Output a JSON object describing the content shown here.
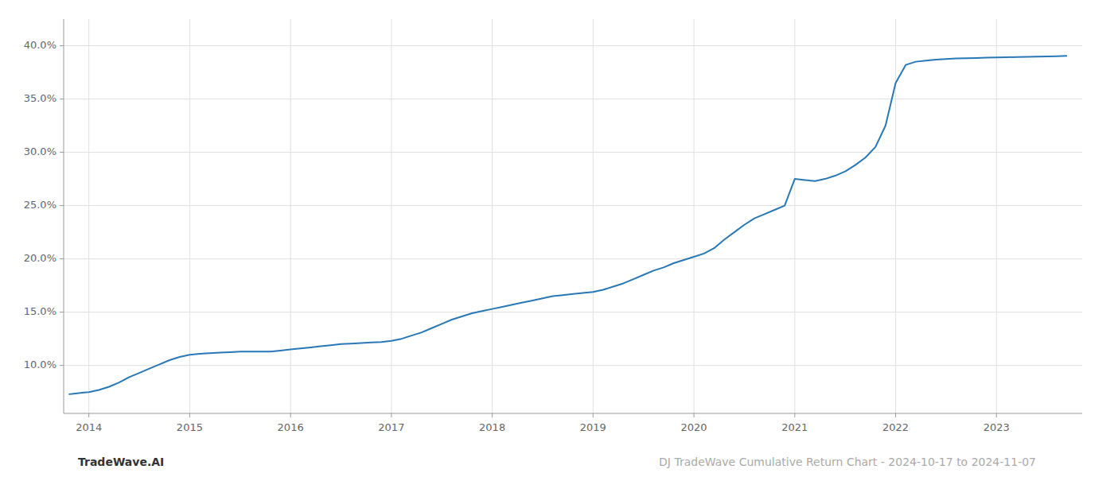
{
  "chart_data": {
    "type": "line",
    "x": [
      2013.8,
      2013.85,
      2013.9,
      2013.95,
      2014.0,
      2014.1,
      2014.2,
      2014.3,
      2014.4,
      2014.5,
      2014.6,
      2014.7,
      2014.8,
      2014.9,
      2015.0,
      2015.1,
      2015.2,
      2015.3,
      2015.4,
      2015.5,
      2015.6,
      2015.7,
      2015.8,
      2015.9,
      2016.0,
      2016.1,
      2016.2,
      2016.3,
      2016.4,
      2016.5,
      2016.6,
      2016.7,
      2016.8,
      2016.9,
      2017.0,
      2017.1,
      2017.2,
      2017.3,
      2017.4,
      2017.5,
      2017.6,
      2017.7,
      2017.8,
      2017.9,
      2018.0,
      2018.1,
      2018.2,
      2018.3,
      2018.4,
      2018.5,
      2018.6,
      2018.7,
      2018.8,
      2018.9,
      2019.0,
      2019.1,
      2019.2,
      2019.3,
      2019.4,
      2019.5,
      2019.6,
      2019.7,
      2019.8,
      2019.9,
      2020.0,
      2020.1,
      2020.2,
      2020.3,
      2020.4,
      2020.5,
      2020.6,
      2020.7,
      2020.8,
      2020.9,
      2021.0,
      2021.1,
      2021.2,
      2021.3,
      2021.4,
      2021.5,
      2021.6,
      2021.7,
      2021.8,
      2021.9,
      2022.0,
      2022.1,
      2022.2,
      2022.3,
      2022.4,
      2022.5,
      2022.6,
      2022.7,
      2022.8,
      2022.9,
      2023.0,
      2023.1,
      2023.2,
      2023.3,
      2023.4,
      2023.5,
      2023.6,
      2023.7
    ],
    "values": [
      7.3,
      7.35,
      7.4,
      7.45,
      7.5,
      7.7,
      8.0,
      8.4,
      8.9,
      9.3,
      9.7,
      10.1,
      10.5,
      10.8,
      11.0,
      11.1,
      11.15,
      11.2,
      11.25,
      11.3,
      11.3,
      11.3,
      11.3,
      11.4,
      11.5,
      11.6,
      11.7,
      11.8,
      11.9,
      12.0,
      12.05,
      12.1,
      12.15,
      12.2,
      12.3,
      12.5,
      12.8,
      13.1,
      13.5,
      13.9,
      14.3,
      14.6,
      14.9,
      15.1,
      15.3,
      15.5,
      15.7,
      15.9,
      16.1,
      16.3,
      16.5,
      16.6,
      16.7,
      16.8,
      16.9,
      17.1,
      17.4,
      17.7,
      18.1,
      18.5,
      18.9,
      19.2,
      19.6,
      19.9,
      20.2,
      20.5,
      21.0,
      21.8,
      22.5,
      23.2,
      23.8,
      24.2,
      24.6,
      25.0,
      27.5,
      27.4,
      27.3,
      27.5,
      27.8,
      28.2,
      28.8,
      29.5,
      30.5,
      32.5,
      36.5,
      38.2,
      38.5,
      38.6,
      38.7,
      38.75,
      38.8,
      38.82,
      38.85,
      38.88,
      38.9,
      38.92,
      38.94,
      38.96,
      38.98,
      39.0,
      39.02,
      39.05
    ],
    "color": "#2878b5",
    "xlim": [
      2013.75,
      2023.85
    ],
    "ylim": [
      5.5,
      42.5
    ],
    "xticks": [
      2014,
      2015,
      2016,
      2017,
      2018,
      2019,
      2020,
      2021,
      2022,
      2023
    ],
    "yticks": [
      {
        "value": 10.0,
        "label": "10.0%"
      },
      {
        "value": 15.0,
        "label": "15.0%"
      },
      {
        "value": 20.0,
        "label": "20.0%"
      },
      {
        "value": 25.0,
        "label": "25.0%"
      },
      {
        "value": 30.0,
        "label": "30.0%"
      },
      {
        "value": 35.0,
        "label": "35.0%"
      },
      {
        "value": 40.0,
        "label": "40.0%"
      }
    ],
    "grid": true,
    "annotations": [
      "TradeWave.AI",
      "DJ TradeWave Cumulative Return Chart - 2024-10-17 to 2024-11-07"
    ]
  }
}
